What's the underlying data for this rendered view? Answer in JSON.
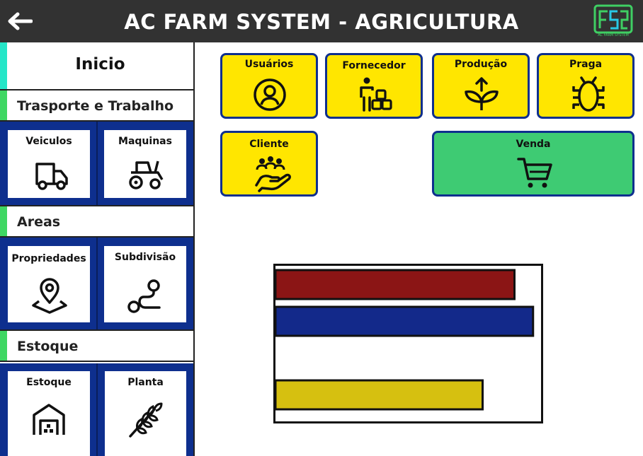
{
  "header": {
    "title": "AC FARM SYSTEM - AGRICULTURA",
    "logo_caption": "AC FARM SYSTEM",
    "back_icon": "arrow-left-icon"
  },
  "sidebar": {
    "home_label": "Inicio",
    "sections": [
      {
        "label": "Trasporte e Trabalho",
        "items": [
          {
            "label": "Veiculos",
            "icon": "truck-icon"
          },
          {
            "label": "Maquinas",
            "icon": "tractor-icon"
          }
        ]
      },
      {
        "label": "Areas",
        "items": [
          {
            "label": "Propriedades",
            "icon": "map-pin-icon"
          },
          {
            "label": "Subdivisão",
            "icon": "route-icon"
          }
        ]
      },
      {
        "label": "Estoque",
        "items": [
          {
            "label": "Estoque",
            "icon": "warehouse-icon"
          },
          {
            "label": "Planta",
            "icon": "wheat-icon"
          }
        ]
      }
    ]
  },
  "main": {
    "buttons": [
      {
        "label": "Usuários",
        "icon": "user-icon"
      },
      {
        "label": "Fornecedor",
        "icon": "supplier-icon"
      },
      {
        "label": "Produção",
        "icon": "sprout-icon"
      },
      {
        "label": "Praga",
        "icon": "bug-icon"
      },
      {
        "label": "Cliente",
        "icon": "client-hand-icon"
      },
      {
        "label": "Venda",
        "icon": "cart-icon"
      }
    ]
  },
  "colors": {
    "header_bg": "#323232",
    "card_yellow": "#ffe600",
    "card_green": "#3ecb73",
    "card_border": "#0e2f8e",
    "tile_bg": "#0e2f8e",
    "accent_cyan": "#25e6c8",
    "accent_green": "#3fd763"
  },
  "chart_data": {
    "type": "bar",
    "orientation": "horizontal",
    "categories": [
      "",
      "",
      "",
      ""
    ],
    "values": [
      90,
      97,
      null,
      78
    ],
    "colors": [
      "#8b1515",
      "#13298a",
      "",
      "#d6c010"
    ],
    "xlim": [
      0,
      100
    ],
    "title": "",
    "xlabel": "",
    "ylabel": "",
    "grid": false
  }
}
